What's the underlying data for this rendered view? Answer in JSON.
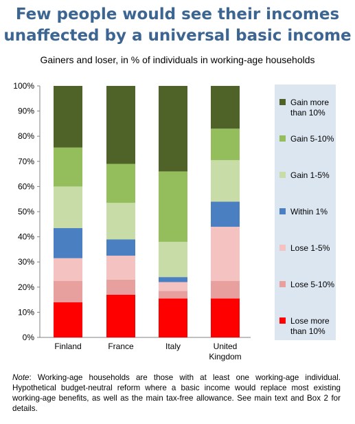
{
  "header": {
    "title_line1": "Few people would see their incomes",
    "title_line2": "unaffected by a universal basic income",
    "subtitle": "Gainers and loser, in % of individuals in working-age households"
  },
  "chart_data": {
    "type": "bar",
    "stacked": true,
    "categories": [
      [
        "Finland"
      ],
      [
        "France"
      ],
      [
        "Italy"
      ],
      [
        "United",
        "Kingdom"
      ]
    ],
    "ylim": [
      0,
      100
    ],
    "yticks": [
      "0%",
      "10%",
      "20%",
      "30%",
      "40%",
      "50%",
      "60%",
      "70%",
      "80%",
      "90%",
      "100%"
    ],
    "xlabel": "",
    "ylabel": "",
    "grid": false,
    "legend_placement": "right",
    "series": [
      {
        "name": [
          "Lose more",
          "than 10%"
        ],
        "color": "#ff0000",
        "values": [
          14,
          17,
          15.5,
          15.5
        ]
      },
      {
        "name": [
          "Lose 5-10%"
        ],
        "color": "#e8a09f",
        "values": [
          8.5,
          6,
          3,
          7
        ]
      },
      {
        "name": [
          "Lose 1-5%"
        ],
        "color": "#f4c2c0",
        "values": [
          9,
          9.5,
          3.5,
          21.5
        ]
      },
      {
        "name": [
          "Within 1%"
        ],
        "color": "#4a7fc1",
        "values": [
          12,
          6.5,
          2,
          10
        ]
      },
      {
        "name": [
          "Gain 1-5%"
        ],
        "color": "#c8dca8",
        "values": [
          16.5,
          14.5,
          14,
          16.5
        ]
      },
      {
        "name": [
          "Gain 5-10%"
        ],
        "color": "#94be5c",
        "values": [
          15.5,
          15.5,
          28,
          12.5
        ]
      },
      {
        "name": [
          "Gain more",
          "than 10%"
        ],
        "color": "#4f6228",
        "values": [
          24.5,
          31,
          34,
          17
        ]
      }
    ]
  },
  "note": {
    "label": "Note",
    "text": ": Working-age households are those with at least one working-age individual. Hypothetical budget-neutral reform where a basic income would replace most existing working-age benefits, as well as the main tax-free allowance. See main text and Box 2 for details."
  }
}
